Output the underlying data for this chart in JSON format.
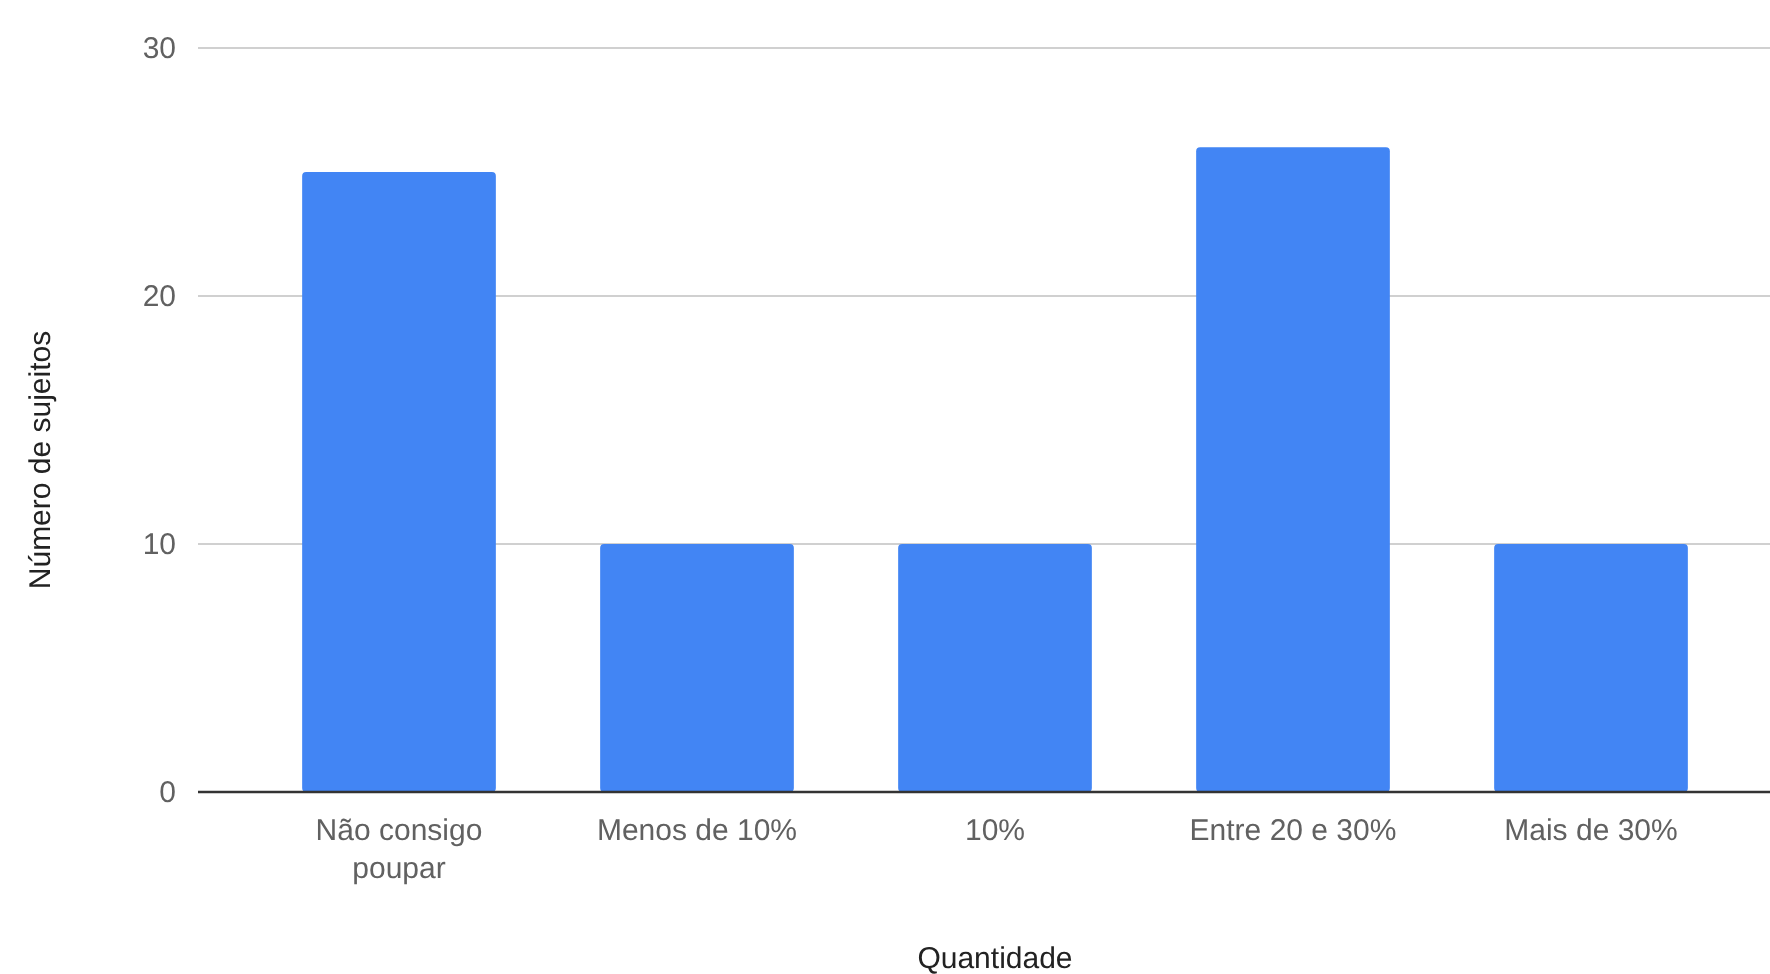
{
  "chart_data": {
    "type": "bar",
    "xlabel": "Quantidade",
    "ylabel": "Número de sujeitos",
    "categories": [
      "Não consigo poupar",
      "Menos de 10%",
      "10%",
      "Entre 20 e 30%",
      "Mais de 30%"
    ],
    "values": [
      25,
      10,
      10,
      26,
      10
    ],
    "color": "#4285f4",
    "ylim": [
      0,
      30
    ],
    "yticks": [
      0,
      10,
      20,
      30
    ],
    "grid": "y"
  }
}
